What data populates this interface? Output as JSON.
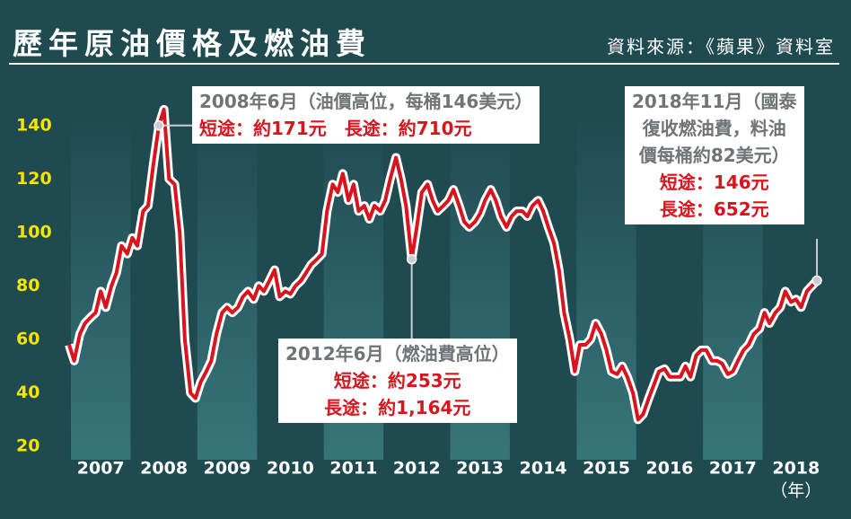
{
  "chart_data": {
    "type": "line",
    "title": "歷年原油價格及燃油費",
    "source": "資料來源：《蘋果》資料室",
    "xlabel": "（年）",
    "x": [
      2007.0,
      2007.08,
      2007.17,
      2007.25,
      2007.33,
      2007.42,
      2007.5,
      2007.58,
      2007.67,
      2007.75,
      2007.83,
      2007.92,
      2008.0,
      2008.08,
      2008.17,
      2008.25,
      2008.33,
      2008.42,
      2008.5,
      2008.58,
      2008.67,
      2008.75,
      2008.83,
      2008.92,
      2009.0,
      2009.08,
      2009.17,
      2009.25,
      2009.33,
      2009.42,
      2009.5,
      2009.58,
      2009.67,
      2009.75,
      2009.83,
      2009.92,
      2010.0,
      2010.08,
      2010.17,
      2010.25,
      2010.33,
      2010.42,
      2010.5,
      2010.58,
      2010.67,
      2010.75,
      2010.83,
      2010.92,
      2011.0,
      2011.08,
      2011.17,
      2011.25,
      2011.33,
      2011.42,
      2011.5,
      2011.58,
      2011.67,
      2011.75,
      2011.83,
      2011.92,
      2012.0,
      2012.08,
      2012.17,
      2012.25,
      2012.33,
      2012.42,
      2012.5,
      2012.58,
      2012.67,
      2012.75,
      2012.83,
      2012.92,
      2013.0,
      2013.08,
      2013.17,
      2013.25,
      2013.33,
      2013.42,
      2013.5,
      2013.58,
      2013.67,
      2013.75,
      2013.83,
      2013.92,
      2014.0,
      2014.08,
      2014.17,
      2014.25,
      2014.33,
      2014.42,
      2014.5,
      2014.58,
      2014.67,
      2014.75,
      2014.83,
      2014.92,
      2015.0,
      2015.08,
      2015.17,
      2015.25,
      2015.33,
      2015.42,
      2015.5,
      2015.58,
      2015.67,
      2015.75,
      2015.83,
      2015.92,
      2016.0,
      2016.08,
      2016.17,
      2016.25,
      2016.33,
      2016.42,
      2016.5,
      2016.58,
      2016.67,
      2016.75,
      2016.83,
      2016.92,
      2017.0,
      2017.08,
      2017.17,
      2017.25,
      2017.33,
      2017.42,
      2017.5,
      2017.58,
      2017.67,
      2017.75,
      2017.83,
      2017.92,
      2018.0,
      2018.08,
      2018.17,
      2018.25,
      2018.33,
      2018.42,
      2018.5,
      2018.58,
      2018.67,
      2018.75,
      2018.83
    ],
    "series": [
      {
        "name": "原油價格",
        "color": "#d9141c",
        "values": [
          58,
          52,
          62,
          66,
          68,
          70,
          78,
          72,
          80,
          85,
          95,
          92,
          98,
          95,
          108,
          110,
          125,
          140,
          146,
          120,
          118,
          100,
          60,
          40,
          38,
          44,
          48,
          52,
          62,
          70,
          72,
          70,
          72,
          76,
          78,
          75,
          80,
          78,
          82,
          86,
          76,
          78,
          77,
          80,
          82,
          85,
          88,
          90,
          92,
          108,
          118,
          115,
          122,
          112,
          118,
          108,
          110,
          105,
          110,
          108,
          112,
          120,
          128,
          120,
          110,
          90,
          102,
          115,
          118,
          112,
          108,
          110,
          112,
          116,
          110,
          104,
          102,
          104,
          107,
          112,
          116,
          112,
          106,
          102,
          106,
          108,
          108,
          106,
          110,
          112,
          108,
          102,
          96,
          86,
          70,
          60,
          48,
          58,
          58,
          60,
          66,
          62,
          56,
          48,
          47,
          50,
          46,
          40,
          30,
          32,
          38,
          43,
          48,
          49,
          46,
          46,
          46,
          50,
          46,
          54,
          56,
          56,
          52,
          52,
          51,
          47,
          48,
          52,
          56,
          58,
          62,
          64,
          70,
          66,
          70,
          72,
          78,
          74,
          75,
          72,
          78,
          80,
          82
        ]
      }
    ],
    "xlim": [
      2007,
      2019
    ],
    "xticks": [
      {
        "value": 2007.5,
        "label": "2007"
      },
      {
        "value": 2008.5,
        "label": "2008"
      },
      {
        "value": 2009.5,
        "label": "2009"
      },
      {
        "value": 2010.5,
        "label": "2010"
      },
      {
        "value": 2011.5,
        "label": "2011"
      },
      {
        "value": 2012.5,
        "label": "2012"
      },
      {
        "value": 2013.5,
        "label": "2013"
      },
      {
        "value": 2014.5,
        "label": "2014"
      },
      {
        "value": 2015.5,
        "label": "2015"
      },
      {
        "value": 2016.5,
        "label": "2016"
      },
      {
        "value": 2017.5,
        "label": "2017"
      },
      {
        "value": 2018.5,
        "label": "2018"
      }
    ],
    "ylim": [
      15,
      150
    ],
    "yticks": [
      20,
      40,
      60,
      80,
      100,
      120,
      140
    ],
    "grid": false,
    "annotations": [
      {
        "lines": [
          "2008年6月（油價高位，每桶146美元）",
          "短途：約171元　長途：約710元"
        ]
      },
      {
        "lines": [
          "2012年6月（燃油費高位）",
          "短途：約253元",
          "長途：約1,164元"
        ]
      },
      {
        "lines": [
          "2018年11月（國泰",
          "復收燃油費，料油",
          "價每桶約82美元）",
          "短途：146元",
          "長途：652元"
        ]
      }
    ]
  }
}
